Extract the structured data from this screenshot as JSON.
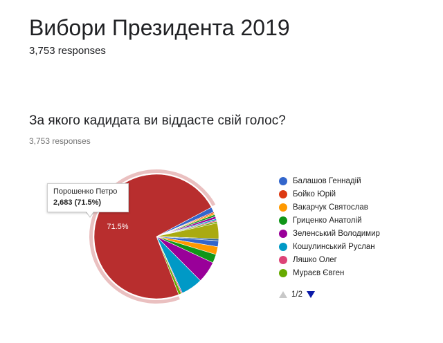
{
  "form": {
    "title": "Вибори Президента 2019",
    "responses": "3,753 responses"
  },
  "question": {
    "title": "За якого кадидата ви віддасте свій голос?",
    "responses": "3,753 responses"
  },
  "tooltip": {
    "name": "Порошенко Петро",
    "value": "2,683 (71.5%)"
  },
  "pager": {
    "label": "1/2"
  },
  "chart_data": {
    "type": "pie",
    "title": "",
    "highlighted": "Порошенко Петро",
    "slice_label": "71.5%",
    "slices": [
      {
        "name": "Балашов Геннадій",
        "value": 1.3,
        "color": "#3366cc"
      },
      {
        "name": "Бойко Юрій",
        "value": 0.3,
        "color": "#dc3912"
      },
      {
        "name": "Вакарчук Святослав",
        "value": 0.4,
        "color": "#ff9900"
      },
      {
        "name": "Гриценко Анатолій",
        "value": 0.5,
        "color": "#109618"
      },
      {
        "name": "Зеленський Володимир",
        "value": 0.6,
        "color": "#990099"
      },
      {
        "name": "Кошулинський Руслан",
        "value": 0.4,
        "color": "#0099c6"
      },
      {
        "name": "Ляшко Олег",
        "value": 0.3,
        "color": "#dd4477"
      },
      {
        "name": "Мураєв Євген",
        "value": 0.4,
        "color": "#66aa00"
      },
      {
        "name": "",
        "value": 4.0,
        "color": "#aaaa11"
      },
      {
        "name": "",
        "value": 0.5,
        "color": "#316395"
      },
      {
        "name": "",
        "value": 1.5,
        "color": "#3366cc"
      },
      {
        "name": "",
        "value": 2.0,
        "color": "#ff9900"
      },
      {
        "name": "",
        "value": 2.2,
        "color": "#109618"
      },
      {
        "name": "",
        "value": 5.5,
        "color": "#990099"
      },
      {
        "name": "",
        "value": 5.5,
        "color": "#0099c6"
      },
      {
        "name": "",
        "value": 0.3,
        "color": "#dd4477"
      },
      {
        "name": "",
        "value": 0.7,
        "color": "#66aa00"
      },
      {
        "name": "Порошенко Петро",
        "value": 71.5,
        "color": "#b82e2e"
      }
    ],
    "legend": [
      {
        "label": "Балашов Геннадій",
        "color": "#3366cc"
      },
      {
        "label": "Бойко Юрій",
        "color": "#dc3912"
      },
      {
        "label": "Вакарчук Святослав",
        "color": "#ff9900"
      },
      {
        "label": "Гриценко Анатолій",
        "color": "#109618"
      },
      {
        "label": "Зеленський Володимир",
        "color": "#990099"
      },
      {
        "label": "Кошулинський Руслан",
        "color": "#0099c6"
      },
      {
        "label": "Ляшко Олег",
        "color": "#dd4477"
      },
      {
        "label": "Мураєв Євген",
        "color": "#66aa00"
      }
    ],
    "legend_placement": "right"
  }
}
